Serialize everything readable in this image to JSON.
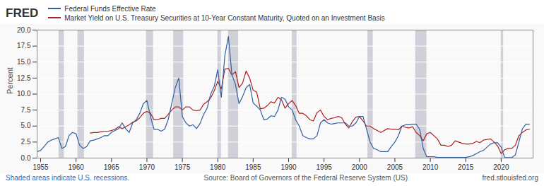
{
  "chart_data": {
    "type": "line",
    "title": "",
    "logo_text": "FRED",
    "ylabel": "Percent",
    "footer_left": "Shaded areas indicate U.S. recessions.",
    "footer_center": "Source: Board of Governors of the Federal Reserve System (US)",
    "footer_right": "fred.stlouisfed.org",
    "xlim": [
      1954.5,
      2024.5
    ],
    "xticks": [
      1955,
      1960,
      1965,
      1970,
      1975,
      1980,
      1985,
      1990,
      1995,
      2000,
      2005,
      2010,
      2015,
      2020
    ],
    "ylim": [
      0,
      20.0
    ],
    "yticks": [
      {
        "value": 0.0,
        "label": "0.0"
      },
      2.5,
      {
        "value": 5.0,
        "label": "5.0"
      },
      7.5,
      {
        "value": 10.0,
        "label": "10.0"
      },
      12.5,
      {
        "value": 15.0,
        "label": "15.0"
      },
      17.5,
      {
        "value": 20.0,
        "label": "20.0"
      }
    ],
    "grid": true,
    "legend": "top-left",
    "recession_bands": {
      "color": "#d0d0d8",
      "ranges": [
        [
          1957.58,
          1958.33
        ],
        [
          1960.25,
          1961.17
        ],
        [
          1969.92,
          1970.92
        ],
        [
          1973.75,
          1975.17
        ],
        [
          1980.0,
          1980.5
        ],
        [
          1981.5,
          1982.92
        ],
        [
          1990.5,
          1991.17
        ],
        [
          2001.17,
          2001.92
        ],
        [
          2007.92,
          2009.5
        ],
        [
          2020.0,
          2020.33
        ]
      ]
    },
    "series": [
      {
        "name": "Federal Funds Effective Rate",
        "color": "#3060a0",
        "x": [
          1954.5,
          1955.0,
          1955.5,
          1956.0,
          1956.5,
          1957.0,
          1957.5,
          1958.0,
          1958.5,
          1959.0,
          1959.5,
          1960.0,
          1960.5,
          1961.0,
          1961.5,
          1962.0,
          1962.5,
          1963.0,
          1963.5,
          1964.0,
          1964.5,
          1965.0,
          1965.5,
          1966.0,
          1966.5,
          1967.0,
          1967.5,
          1968.0,
          1968.5,
          1969.0,
          1969.5,
          1970.0,
          1970.5,
          1971.0,
          1971.5,
          1972.0,
          1972.5,
          1973.0,
          1973.5,
          1974.0,
          1974.5,
          1975.0,
          1975.5,
          1976.0,
          1976.5,
          1977.0,
          1977.5,
          1978.0,
          1978.5,
          1979.0,
          1979.5,
          1980.0,
          1980.5,
          1981.0,
          1981.5,
          1982.0,
          1982.5,
          1983.0,
          1983.5,
          1984.0,
          1984.5,
          1985.0,
          1985.5,
          1986.0,
          1986.5,
          1987.0,
          1987.5,
          1988.0,
          1988.5,
          1989.0,
          1989.5,
          1990.0,
          1990.5,
          1991.0,
          1991.5,
          1992.0,
          1992.5,
          1993.0,
          1993.5,
          1994.0,
          1994.5,
          1995.0,
          1995.5,
          1996.0,
          1996.5,
          1997.0,
          1997.5,
          1998.0,
          1998.5,
          1999.0,
          1999.5,
          2000.0,
          2000.5,
          2001.0,
          2001.5,
          2002.0,
          2002.5,
          2003.0,
          2003.5,
          2004.0,
          2004.5,
          2005.0,
          2005.5,
          2006.0,
          2006.5,
          2007.0,
          2007.5,
          2008.0,
          2008.5,
          2009.0,
          2009.5,
          2010.0,
          2010.5,
          2011.0,
          2011.5,
          2012.0,
          2012.5,
          2013.0,
          2013.5,
          2014.0,
          2014.5,
          2015.0,
          2015.5,
          2016.0,
          2016.5,
          2017.0,
          2017.5,
          2018.0,
          2018.5,
          2019.0,
          2019.5,
          2020.0,
          2020.5,
          2021.0,
          2021.5,
          2022.0,
          2022.5,
          2023.0,
          2023.5,
          2024.0
        ],
        "values": [
          1.0,
          1.2,
          1.8,
          2.5,
          2.8,
          3.0,
          3.2,
          1.5,
          1.8,
          3.5,
          4.0,
          3.8,
          2.0,
          1.5,
          1.8,
          2.7,
          2.8,
          3.0,
          3.2,
          3.5,
          3.5,
          4.0,
          4.3,
          4.6,
          5.5,
          4.6,
          4.0,
          5.5,
          6.0,
          7.0,
          8.5,
          9.0,
          6.5,
          4.5,
          4.5,
          4.2,
          4.5,
          6.0,
          8.5,
          11.0,
          12.5,
          6.5,
          5.5,
          5.0,
          5.2,
          4.6,
          5.4,
          6.8,
          7.8,
          10.0,
          11.2,
          13.8,
          9.5,
          16.0,
          19.0,
          13.0,
          11.5,
          8.5,
          9.6,
          11.0,
          11.5,
          8.6,
          8.1,
          7.5,
          6.0,
          6.1,
          6.6,
          6.5,
          7.5,
          9.5,
          9.2,
          8.0,
          7.5,
          6.0,
          5.0,
          3.5,
          3.2,
          3.0,
          3.0,
          3.5,
          5.5,
          6.0,
          5.5,
          5.3,
          5.4,
          5.5,
          5.5,
          5.5,
          5.0,
          5.0,
          5.5,
          6.5,
          6.5,
          4.5,
          2.5,
          1.5,
          1.3,
          1.0,
          1.0,
          1.0,
          1.8,
          2.5,
          3.5,
          5.0,
          5.2,
          5.2,
          5.3,
          5.3,
          4.5,
          1.5,
          0.2,
          0.2,
          0.2,
          0.1,
          0.1,
          0.1,
          0.1,
          0.1,
          0.1,
          0.1,
          0.1,
          0.1,
          0.2,
          0.4,
          0.7,
          1.0,
          1.2,
          1.7,
          2.2,
          2.4,
          2.4,
          1.7,
          0.08,
          0.08,
          0.08,
          0.5,
          2.5,
          4.6,
          5.3,
          5.3
        ]
      },
      {
        "name": "Market Yield on U.S. Treasury Securities at 10-Year Constant Maturity, Quoted on an Investment Basis",
        "color": "#b02020",
        "x": [
          1962.0,
          1962.5,
          1963.0,
          1963.5,
          1964.0,
          1964.5,
          1965.0,
          1965.5,
          1966.0,
          1966.5,
          1967.0,
          1967.5,
          1968.0,
          1968.5,
          1969.0,
          1969.5,
          1970.0,
          1970.5,
          1971.0,
          1971.5,
          1972.0,
          1972.5,
          1973.0,
          1973.5,
          1974.0,
          1974.5,
          1975.0,
          1975.5,
          1976.0,
          1976.5,
          1977.0,
          1977.5,
          1978.0,
          1978.5,
          1979.0,
          1979.5,
          1980.0,
          1980.5,
          1981.0,
          1981.5,
          1982.0,
          1982.5,
          1983.0,
          1983.5,
          1984.0,
          1984.5,
          1985.0,
          1985.5,
          1986.0,
          1986.5,
          1987.0,
          1987.5,
          1988.0,
          1988.5,
          1989.0,
          1989.5,
          1990.0,
          1990.5,
          1991.0,
          1991.5,
          1992.0,
          1992.5,
          1993.0,
          1993.5,
          1994.0,
          1994.5,
          1995.0,
          1995.5,
          1996.0,
          1996.5,
          1997.0,
          1997.5,
          1998.0,
          1998.5,
          1999.0,
          1999.5,
          2000.0,
          2000.5,
          2001.0,
          2001.5,
          2002.0,
          2002.5,
          2003.0,
          2003.5,
          2004.0,
          2004.5,
          2005.0,
          2005.5,
          2006.0,
          2006.5,
          2007.0,
          2007.5,
          2008.0,
          2008.5,
          2009.0,
          2009.5,
          2010.0,
          2010.5,
          2011.0,
          2011.5,
          2012.0,
          2012.5,
          2013.0,
          2013.5,
          2014.0,
          2014.5,
          2015.0,
          2015.5,
          2016.0,
          2016.5,
          2017.0,
          2017.5,
          2018.0,
          2018.5,
          2019.0,
          2019.5,
          2020.0,
          2020.5,
          2021.0,
          2021.5,
          2022.0,
          2022.5,
          2023.0,
          2023.5,
          2024.0
        ],
        "values": [
          3.9,
          4.0,
          4.0,
          4.1,
          4.2,
          4.2,
          4.3,
          4.5,
          4.9,
          4.6,
          4.9,
          5.2,
          5.6,
          5.8,
          6.3,
          7.0,
          7.3,
          7.0,
          6.0,
          6.0,
          6.2,
          6.2,
          6.8,
          7.5,
          8.0,
          8.0,
          7.5,
          8.0,
          8.0,
          7.5,
          7.4,
          7.5,
          8.4,
          8.8,
          9.4,
          10.5,
          12.0,
          10.8,
          13.9,
          14.0,
          13.0,
          13.5,
          11.0,
          11.7,
          13.6,
          12.5,
          10.6,
          10.3,
          7.7,
          7.8,
          8.2,
          8.8,
          8.6,
          9.5,
          9.1,
          7.8,
          8.5,
          9.0,
          8.2,
          7.0,
          7.0,
          6.6,
          6.0,
          5.8,
          7.1,
          7.5,
          6.5,
          6.0,
          6.2,
          6.3,
          6.5,
          6.3,
          5.3,
          4.7,
          5.7,
          6.4,
          6.5,
          5.8,
          5.0,
          5.0,
          4.6,
          4.3,
          4.0,
          4.3,
          4.6,
          4.5,
          4.5,
          4.4,
          5.0,
          4.8,
          4.7,
          4.9,
          4.0,
          3.5,
          2.7,
          3.8,
          4.0,
          3.5,
          3.0,
          2.0,
          2.0,
          1.8,
          2.0,
          2.7,
          2.5,
          2.3,
          2.2,
          2.2,
          2.3,
          2.6,
          2.4,
          2.8,
          2.9,
          3.0,
          2.5,
          1.9,
          0.7,
          1.3,
          1.5,
          1.5,
          2.0,
          3.5,
          4.0,
          4.4,
          4.5
        ]
      }
    ]
  }
}
